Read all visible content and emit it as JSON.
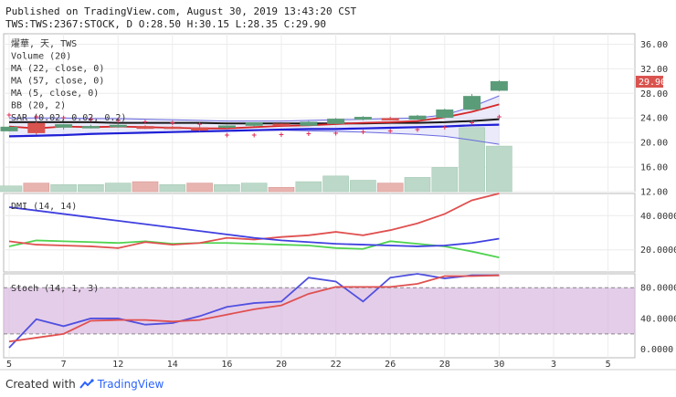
{
  "header": {
    "published": "Published on TradingView.com, August 30, 2019 13:43:20 CST",
    "quote": "TWS:TWS:2367:STOCK, D O:28.50 H:30.15 L:28.35 C:29.90"
  },
  "footer": {
    "created_with": "Created with",
    "brand": "TradingView"
  },
  "colors": {
    "up": "#5b9c78",
    "down": "#d9534f",
    "ma22": "#d62728",
    "ma57": "#1a1a1a",
    "ma5": "#1f1fd6",
    "bb": "#6a6ae0",
    "sar": "#e0325a",
    "dmi_plus": "#4fd34f",
    "dmi_minus": "#e05050",
    "dmi_adx": "#4040e0",
    "stoch_k": "#5050e0",
    "stoch_d": "#e05050",
    "stoch_band": "#d8b8e0",
    "last_price_bg": "#d9534f"
  },
  "chart_data": [
    {
      "type": "candlestick",
      "pane": "price",
      "legend": [
        "燿華, 天, TWS",
        "Volume (20)",
        "MA (22, close, 0)",
        "MA (57, close, 0)",
        "MA (5, close, 0)",
        "BB (20, 2)",
        "SAR (0.02, 0.02, 0.2)"
      ],
      "x_tick_labels": [
        "5",
        "7",
        "12",
        "14",
        "16",
        "20",
        "22",
        "26",
        "28",
        "30",
        "3",
        "5"
      ],
      "x_tick_index": [
        0,
        2,
        4,
        6,
        8,
        10,
        12,
        14,
        16,
        18,
        20,
        22
      ],
      "y_tick_labels": [
        "12.00",
        "16.00",
        "20.00",
        "24.00",
        "28.00",
        "32.00",
        "36.00"
      ],
      "ylim": [
        12,
        37.7
      ],
      "last_price": 29.9,
      "last_price_label": "29.90",
      "ohlc": [
        [
          21.9,
          22.4,
          21.8,
          22.5
        ],
        [
          23.1,
          23.4,
          21.3,
          21.6
        ],
        [
          22.5,
          23.0,
          22.1,
          22.9
        ],
        [
          22.6,
          22.9,
          22.3,
          22.6
        ],
        [
          22.7,
          23.0,
          22.4,
          22.8
        ],
        [
          22.6,
          22.8,
          22.2,
          22.3
        ],
        [
          22.5,
          22.7,
          22.2,
          22.4
        ],
        [
          22.4,
          22.6,
          21.8,
          22.0
        ],
        [
          22.5,
          22.8,
          22.3,
          22.7
        ],
        [
          22.8,
          23.3,
          22.6,
          23.2
        ],
        [
          23.0,
          23.1,
          22.7,
          22.8
        ],
        [
          22.8,
          23.5,
          22.7,
          23.3
        ],
        [
          23.1,
          24.0,
          23.0,
          23.8
        ],
        [
          23.8,
          24.3,
          23.6,
          24.1
        ],
        [
          23.9,
          24.2,
          23.6,
          23.8
        ],
        [
          23.8,
          24.5,
          23.7,
          24.3
        ],
        [
          24.1,
          25.5,
          24.0,
          25.3
        ],
        [
          25.4,
          27.9,
          25.3,
          27.5
        ],
        [
          28.5,
          30.15,
          28.35,
          29.9
        ]
      ],
      "ma5": [
        21.0,
        21.1,
        21.2,
        21.4,
        21.5,
        21.6,
        21.7,
        21.8,
        21.9,
        22.0,
        22.1,
        22.2,
        22.2,
        22.3,
        22.4,
        22.5,
        22.6,
        22.8,
        22.9
      ],
      "ma22": [
        22.6,
        22.3,
        22.6,
        22.5,
        22.6,
        22.5,
        22.4,
        22.3,
        22.3,
        22.5,
        22.7,
        22.8,
        23.0,
        23.2,
        23.3,
        23.5,
        24.1,
        25.0,
        26.2
      ],
      "ma57": [
        23.3,
        23.3,
        23.3,
        23.3,
        23.2,
        23.2,
        23.2,
        23.2,
        23.1,
        23.1,
        23.1,
        23.1,
        23.1,
        23.1,
        23.2,
        23.2,
        23.3,
        23.5,
        23.8
      ],
      "bb_upper": [
        24.0,
        24.0,
        24.0,
        23.9,
        23.9,
        23.8,
        23.7,
        23.6,
        23.5,
        23.5,
        23.5,
        23.6,
        23.7,
        23.8,
        23.9,
        24.0,
        24.5,
        25.8,
        27.6
      ],
      "bb_lower": [
        21.1,
        21.2,
        21.3,
        21.4,
        21.5,
        21.6,
        21.7,
        21.8,
        21.9,
        22.0,
        22.0,
        21.9,
        21.8,
        21.7,
        21.5,
        21.3,
        21.0,
        20.4,
        19.7
      ],
      "sar": [
        24.5,
        24.2,
        24.0,
        23.8,
        23.6,
        23.4,
        23.2,
        23.0,
        21.2,
        21.2,
        21.3,
        21.4,
        21.5,
        21.7,
        21.9,
        22.1,
        22.5,
        23.2,
        24.2
      ],
      "volume": [
        4,
        6,
        5,
        5,
        6,
        7,
        5,
        6,
        5,
        6,
        3,
        7,
        11,
        8,
        6,
        10,
        17,
        45,
        32
      ],
      "volume_up": [
        true,
        false,
        true,
        true,
        true,
        false,
        true,
        false,
        true,
        true,
        false,
        true,
        true,
        true,
        false,
        true,
        true,
        true,
        true
      ],
      "volume_max": 50
    },
    {
      "type": "line",
      "pane": "dmi",
      "legend": [
        "DMI (14, 14)"
      ],
      "y_tick_labels": [
        "20.0000",
        "40.0000"
      ],
      "ylim": [
        7,
        53
      ],
      "series": [
        {
          "name": "+DI",
          "values": [
            22.0,
            25.5,
            25.0,
            24.5,
            24.0,
            25.0,
            23.5,
            24.0,
            24.0,
            23.5,
            23.0,
            22.5,
            21.0,
            20.5,
            25.0,
            23.5,
            22.0,
            19.0,
            15.5
          ]
        },
        {
          "name": "-DI",
          "values": [
            25.0,
            23.0,
            22.5,
            22.0,
            21.0,
            24.5,
            23.0,
            24.0,
            27.0,
            26.0,
            27.5,
            28.5,
            30.5,
            28.5,
            31.5,
            35.5,
            41.0,
            49.0,
            53.0
          ]
        },
        {
          "name": "ADX",
          "values": [
            45.0,
            43.0,
            41.0,
            39.0,
            37.0,
            35.0,
            33.0,
            31.0,
            29.0,
            27.0,
            25.5,
            24.5,
            23.5,
            23.0,
            22.5,
            22.0,
            22.5,
            24.0,
            26.5
          ]
        }
      ]
    },
    {
      "type": "line",
      "pane": "stoch",
      "legend": [
        "Stoch (14, 1, 3)"
      ],
      "y_tick_labels": [
        "0.0000",
        "40.0000",
        "80.0000"
      ],
      "ylim": [
        -11,
        98
      ],
      "band": [
        20,
        80
      ],
      "series": [
        {
          "name": "%K",
          "values": [
            2,
            39,
            30,
            40,
            40,
            32,
            34,
            43,
            55,
            60,
            62,
            93,
            88,
            62,
            93,
            98,
            92,
            96,
            96
          ]
        },
        {
          "name": "%D",
          "values": [
            10,
            15,
            20,
            37,
            38,
            38,
            36,
            38,
            45,
            52,
            57,
            72,
            81,
            81,
            81,
            85,
            95,
            95,
            96
          ]
        }
      ]
    }
  ]
}
